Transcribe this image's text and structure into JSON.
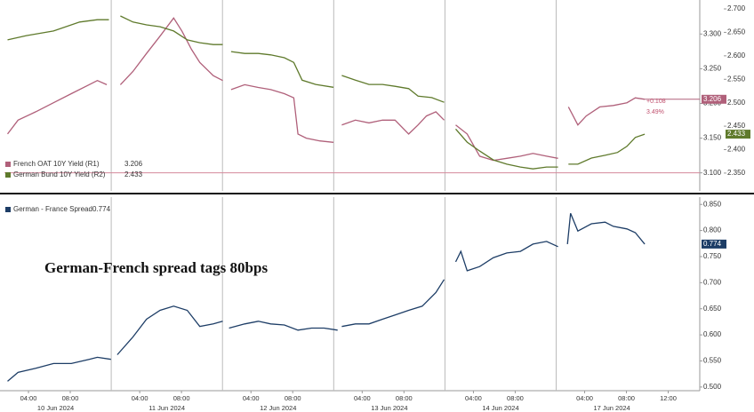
{
  "chart_data": [
    {
      "type": "line",
      "xlim": [
        -0.3,
        66.1
      ],
      "ylim": [
        3.074,
        3.349
      ],
      "yticks": [
        {
          "value": 3.1,
          "label": "3.100"
        },
        {
          "value": 3.15,
          "label": "3.150"
        },
        {
          "value": 3.2,
          "label": "3.200"
        },
        {
          "value": 3.25,
          "label": "3.250"
        },
        {
          "value": 3.3,
          "label": "3.300"
        }
      ],
      "y2lim": [
        2.312,
        2.719
      ],
      "y2ticks": [
        {
          "value": 2.35,
          "label": "2.350"
        },
        {
          "value": 2.4,
          "label": "2.400"
        },
        {
          "value": 2.45,
          "label": "2.450"
        },
        {
          "value": 2.5,
          "label": "2.500"
        },
        {
          "value": 2.55,
          "label": "2.550"
        },
        {
          "value": 2.6,
          "label": "2.600"
        },
        {
          "value": 2.65,
          "label": "2.650"
        },
        {
          "value": 2.7,
          "label": "2.700"
        }
      ],
      "reference_line": 3.1,
      "legend": "lower left",
      "annotations": [
        "+0.108",
        "3.49%"
      ],
      "series": [
        {
          "name": "French OAT 10Y Yield (R1)",
          "color": "#b0607a",
          "axis": "y",
          "x": [
            0.0,
            1.0,
            2.7,
            4.4,
            6.1,
            7.8,
            8.6,
            9.5,
            null,
            10.8,
            12.0,
            13.3,
            14.6,
            15.9,
            16.7,
            17.6,
            18.4,
            19.7,
            20.6,
            null,
            21.4,
            22.7,
            24.0,
            25.2,
            26.5,
            27.4,
            27.8,
            28.6,
            29.9,
            31.2,
            null,
            32.0,
            33.3,
            34.6,
            35.9,
            37.1,
            38.4,
            39.3,
            40.1,
            41.0,
            41.8,
            null,
            42.9,
            44.0,
            45.2,
            46.5,
            47.8,
            49.1,
            50.3,
            51.6,
            52.7,
            null,
            53.7,
            54.6,
            55.4,
            56.7,
            58.0,
            59.3,
            60.1,
            61.0
          ],
          "values": [
            3.156,
            3.176,
            3.188,
            3.201,
            3.214,
            3.227,
            3.233,
            3.227,
            null,
            3.227,
            3.246,
            3.272,
            3.297,
            3.323,
            3.304,
            3.278,
            3.259,
            3.24,
            3.233,
            null,
            3.22,
            3.227,
            3.223,
            3.22,
            3.214,
            3.208,
            3.156,
            3.15,
            3.146,
            3.144,
            null,
            3.169,
            3.176,
            3.172,
            3.176,
            3.176,
            3.156,
            3.169,
            3.182,
            3.188,
            3.176,
            null,
            3.169,
            3.156,
            3.124,
            3.118,
            3.121,
            3.124,
            3.128,
            3.124,
            3.121,
            null,
            3.195,
            3.169,
            3.182,
            3.195,
            3.197,
            3.201,
            3.208,
            3.206
          ]
        },
        {
          "name": "German Bund 10Y Yield (R2)",
          "color": "#5f7a2c",
          "axis": "y2",
          "x": [
            0.0,
            1.8,
            4.4,
            6.9,
            8.6,
            9.7,
            null,
            10.8,
            12.0,
            13.3,
            14.6,
            15.9,
            17.2,
            18.4,
            19.7,
            20.6,
            null,
            21.4,
            22.7,
            24.0,
            25.2,
            26.5,
            27.4,
            28.2,
            29.5,
            31.2,
            null,
            32.0,
            33.3,
            34.6,
            35.9,
            37.1,
            38.4,
            39.3,
            40.6,
            41.8,
            null,
            42.9,
            44.0,
            45.2,
            46.5,
            47.8,
            49.1,
            50.3,
            51.6,
            52.7,
            null,
            53.7,
            54.6,
            55.9,
            57.2,
            58.4,
            59.3,
            60.1,
            61.0
          ],
          "values": [
            2.634,
            2.643,
            2.653,
            2.672,
            2.677,
            2.677,
            null,
            2.685,
            2.672,
            2.666,
            2.662,
            2.653,
            2.634,
            2.628,
            2.624,
            2.624,
            null,
            2.609,
            2.605,
            2.605,
            2.602,
            2.596,
            2.586,
            2.548,
            2.539,
            2.533,
            null,
            2.558,
            2.548,
            2.539,
            2.539,
            2.535,
            2.53,
            2.514,
            2.511,
            2.501,
            null,
            2.444,
            2.416,
            2.397,
            2.378,
            2.369,
            2.363,
            2.359,
            2.363,
            2.363,
            null,
            2.369,
            2.369,
            2.382,
            2.388,
            2.394,
            2.407,
            2.426,
            2.433
          ]
        }
      ]
    },
    {
      "type": "line",
      "xlim": [
        -0.3,
        66.1
      ],
      "ylim": [
        0.493,
        0.864
      ],
      "yticks": [
        {
          "value": 0.5,
          "label": "0.500"
        },
        {
          "value": 0.55,
          "label": "0.550"
        },
        {
          "value": 0.6,
          "label": "0.600"
        },
        {
          "value": 0.65,
          "label": "0.650"
        },
        {
          "value": 0.7,
          "label": "0.700"
        },
        {
          "value": 0.75,
          "label": "0.750"
        },
        {
          "value": 0.8,
          "label": "0.800"
        },
        {
          "value": 0.85,
          "label": "0.850"
        }
      ],
      "xticks": [
        {
          "value": 2,
          "label": "04:00"
        },
        {
          "value": 6,
          "label": "08:00"
        },
        {
          "value": 12.65,
          "label": "04:00"
        },
        {
          "value": 16.65,
          "label": "08:00"
        },
        {
          "value": 23.3,
          "label": "04:00"
        },
        {
          "value": 27.3,
          "label": "08:00"
        },
        {
          "value": 33.95,
          "label": "04:00"
        },
        {
          "value": 37.95,
          "label": "08:00"
        },
        {
          "value": 44.6,
          "label": "04:00"
        },
        {
          "value": 48.6,
          "label": "08:00"
        },
        {
          "value": 55.25,
          "label": "04:00"
        },
        {
          "value": 59.25,
          "label": "08:00"
        },
        {
          "value": 63.25,
          "label": "12:00"
        }
      ],
      "date_labels": [
        {
          "value": 4.6,
          "label": "10 Jun 2024"
        },
        {
          "value": 15.25,
          "label": "11 Jun 2024"
        },
        {
          "value": 25.9,
          "label": "12 Jun 2024"
        },
        {
          "value": 36.55,
          "label": "13 Jun 2024"
        },
        {
          "value": 47.2,
          "label": "14 Jun 2024"
        },
        {
          "value": 57.85,
          "label": "17 Jun 2024"
        }
      ],
      "legend": "upper left",
      "annotation": "German-French spread tags 80bps",
      "series": [
        {
          "name": "German - France Spread",
          "color": "#1d3d66",
          "axis": "y",
          "x": [
            0.0,
            1.0,
            2.7,
            4.4,
            6.1,
            7.8,
            8.6,
            9.9,
            null,
            10.5,
            12.0,
            13.3,
            14.6,
            15.9,
            17.2,
            18.4,
            19.7,
            20.6,
            null,
            21.2,
            22.7,
            24.0,
            25.2,
            26.5,
            27.8,
            29.1,
            30.3,
            31.6,
            null,
            32.0,
            33.3,
            34.6,
            35.9,
            37.1,
            38.4,
            39.7,
            41.0,
            41.8,
            null,
            42.9,
            43.4,
            44.0,
            45.2,
            46.5,
            47.8,
            49.1,
            50.3,
            51.6,
            52.7,
            null,
            53.6,
            53.9,
            54.6,
            55.9,
            57.2,
            58.0,
            59.3,
            60.1,
            61.0
          ],
          "values": [
            0.511,
            0.528,
            0.536,
            0.545,
            0.545,
            0.553,
            0.557,
            0.553,
            null,
            0.562,
            0.596,
            0.63,
            0.647,
            0.655,
            0.647,
            0.616,
            0.621,
            0.626,
            null,
            0.613,
            0.621,
            0.626,
            0.621,
            0.619,
            0.609,
            0.613,
            0.613,
            0.609,
            null,
            0.616,
            0.621,
            0.621,
            0.63,
            0.638,
            0.647,
            0.655,
            0.681,
            0.706,
            null,
            0.74,
            0.76,
            0.723,
            0.731,
            0.748,
            0.757,
            0.76,
            0.774,
            0.779,
            0.769,
            null,
            0.774,
            0.833,
            0.799,
            0.813,
            0.816,
            0.808,
            0.803,
            0.796,
            0.774
          ]
        }
      ]
    }
  ]
}
